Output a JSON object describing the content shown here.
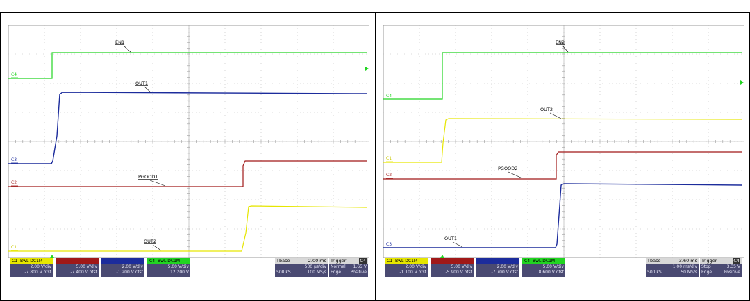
{
  "colors": {
    "c1": "#e6e600",
    "c2": "#a01818",
    "c3": "#1c2c9c",
    "c4": "#22d422",
    "grid": "#b8b8b8",
    "panel": "#4a4a72"
  },
  "panels": [
    {
      "traces": {
        "en": "EN1",
        "out_a": "OUT1",
        "pgood": "PGOOD1",
        "out_b": "OUT2"
      },
      "labels": {
        "c4": "C4",
        "c3": "C3",
        "c2": "C2",
        "c1": "C1"
      },
      "channels": [
        {
          "name": "C1",
          "flags": "BwL DC1M",
          "vdiv": "2.00 V/div",
          "ofst": "-7.800 V ofst"
        },
        {
          "name": "C2",
          "flags": "BwL DC1M",
          "vdiv": "5.00 V/div",
          "ofst": "-7.400 V ofst"
        },
        {
          "name": "C3",
          "flags": "BwL DC1M",
          "vdiv": "2.00 V/div",
          "ofst": "-1.200 V ofst"
        },
        {
          "name": "C4",
          "flags": "BwL DC1M",
          "vdiv": "5.00 V/div",
          "ofst": "12.200 V"
        }
      ],
      "timebase": {
        "label": "Tbase",
        "delay": "-2.00 ms",
        "div": "500 µs/div",
        "samples": "500 kS",
        "rate": "100 MS/s"
      },
      "trigger": {
        "label": "Trigger",
        "channel": "C4",
        "mode": "Normal",
        "level": "1.65 V",
        "type": "Edge",
        "slope": "Positive"
      }
    },
    {
      "traces": {
        "en": "EN2",
        "out_a": "OUT2",
        "pgood": "PGOOD2",
        "out_b": "OUT1"
      },
      "labels": {
        "c4": "C4",
        "c1": "C1",
        "c2": "C2",
        "c3": "C3"
      },
      "channels": [
        {
          "name": "C1",
          "flags": "BwL DC1M",
          "vdiv": "2.00 V/div",
          "ofst": "-1.100 V ofst"
        },
        {
          "name": "C2",
          "flags": "BwL DC1M",
          "vdiv": "5.00 V/div",
          "ofst": "-5.900 V ofst"
        },
        {
          "name": "C3",
          "flags": "BwL DC1M",
          "vdiv": "2.00 V/div",
          "ofst": "-7.700 V ofst"
        },
        {
          "name": "C4",
          "flags": "BwL DC1M",
          "vdiv": "5.00 V/div",
          "ofst": "8.600 V ofst"
        }
      ],
      "timebase": {
        "label": "Tbase",
        "delay": "-3.60 ms",
        "div": "1.00 ms/div",
        "samples": "500 kS",
        "rate": "50 MS/s"
      },
      "trigger": {
        "label": "Trigger",
        "channel": "C4",
        "mode": "Stop",
        "level": "3.35 V",
        "type": "Edge",
        "slope": "Positive"
      }
    }
  ]
}
